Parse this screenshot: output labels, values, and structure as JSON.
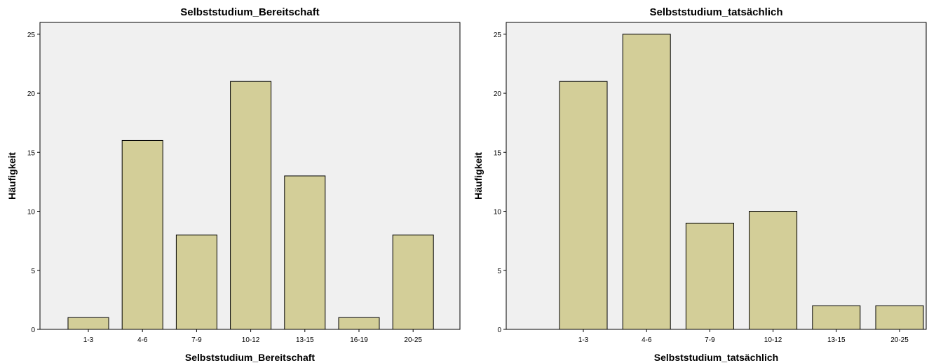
{
  "chart_data": [
    {
      "type": "bar",
      "title": "Selbststudium_Bereitschaft",
      "xlabel": "Selbststudium_Bereitschaft",
      "ylabel": "Häufigkeit",
      "categories": [
        "1-3",
        "4-6",
        "7-9",
        "10-12",
        "13-15",
        "16-19",
        "20-25"
      ],
      "values": [
        1,
        16,
        8,
        21,
        13,
        1,
        8
      ],
      "ylim": [
        0,
        26
      ],
      "yticks": [
        0,
        5,
        10,
        15,
        20,
        25
      ],
      "grid": false,
      "colors": {
        "bar_fill": "#d3ce98",
        "bar_stroke": "#000000",
        "plot_bg": "#f0f0f0"
      }
    },
    {
      "type": "bar",
      "title": "Selbststudium_tatsächlich",
      "xlabel": "Selbststudium_tatsächlich",
      "ylabel": "Häufigkeit",
      "categories": [
        "1-3",
        "4-6",
        "7-9",
        "10-12",
        "13-15",
        "20-25"
      ],
      "values": [
        21,
        25,
        9,
        10,
        2,
        2
      ],
      "ylim": [
        0,
        26
      ],
      "yticks": [
        0,
        5,
        10,
        15,
        20,
        25
      ],
      "grid": false,
      "colors": {
        "bar_fill": "#d3ce98",
        "bar_stroke": "#000000",
        "plot_bg": "#f0f0f0"
      }
    }
  ]
}
